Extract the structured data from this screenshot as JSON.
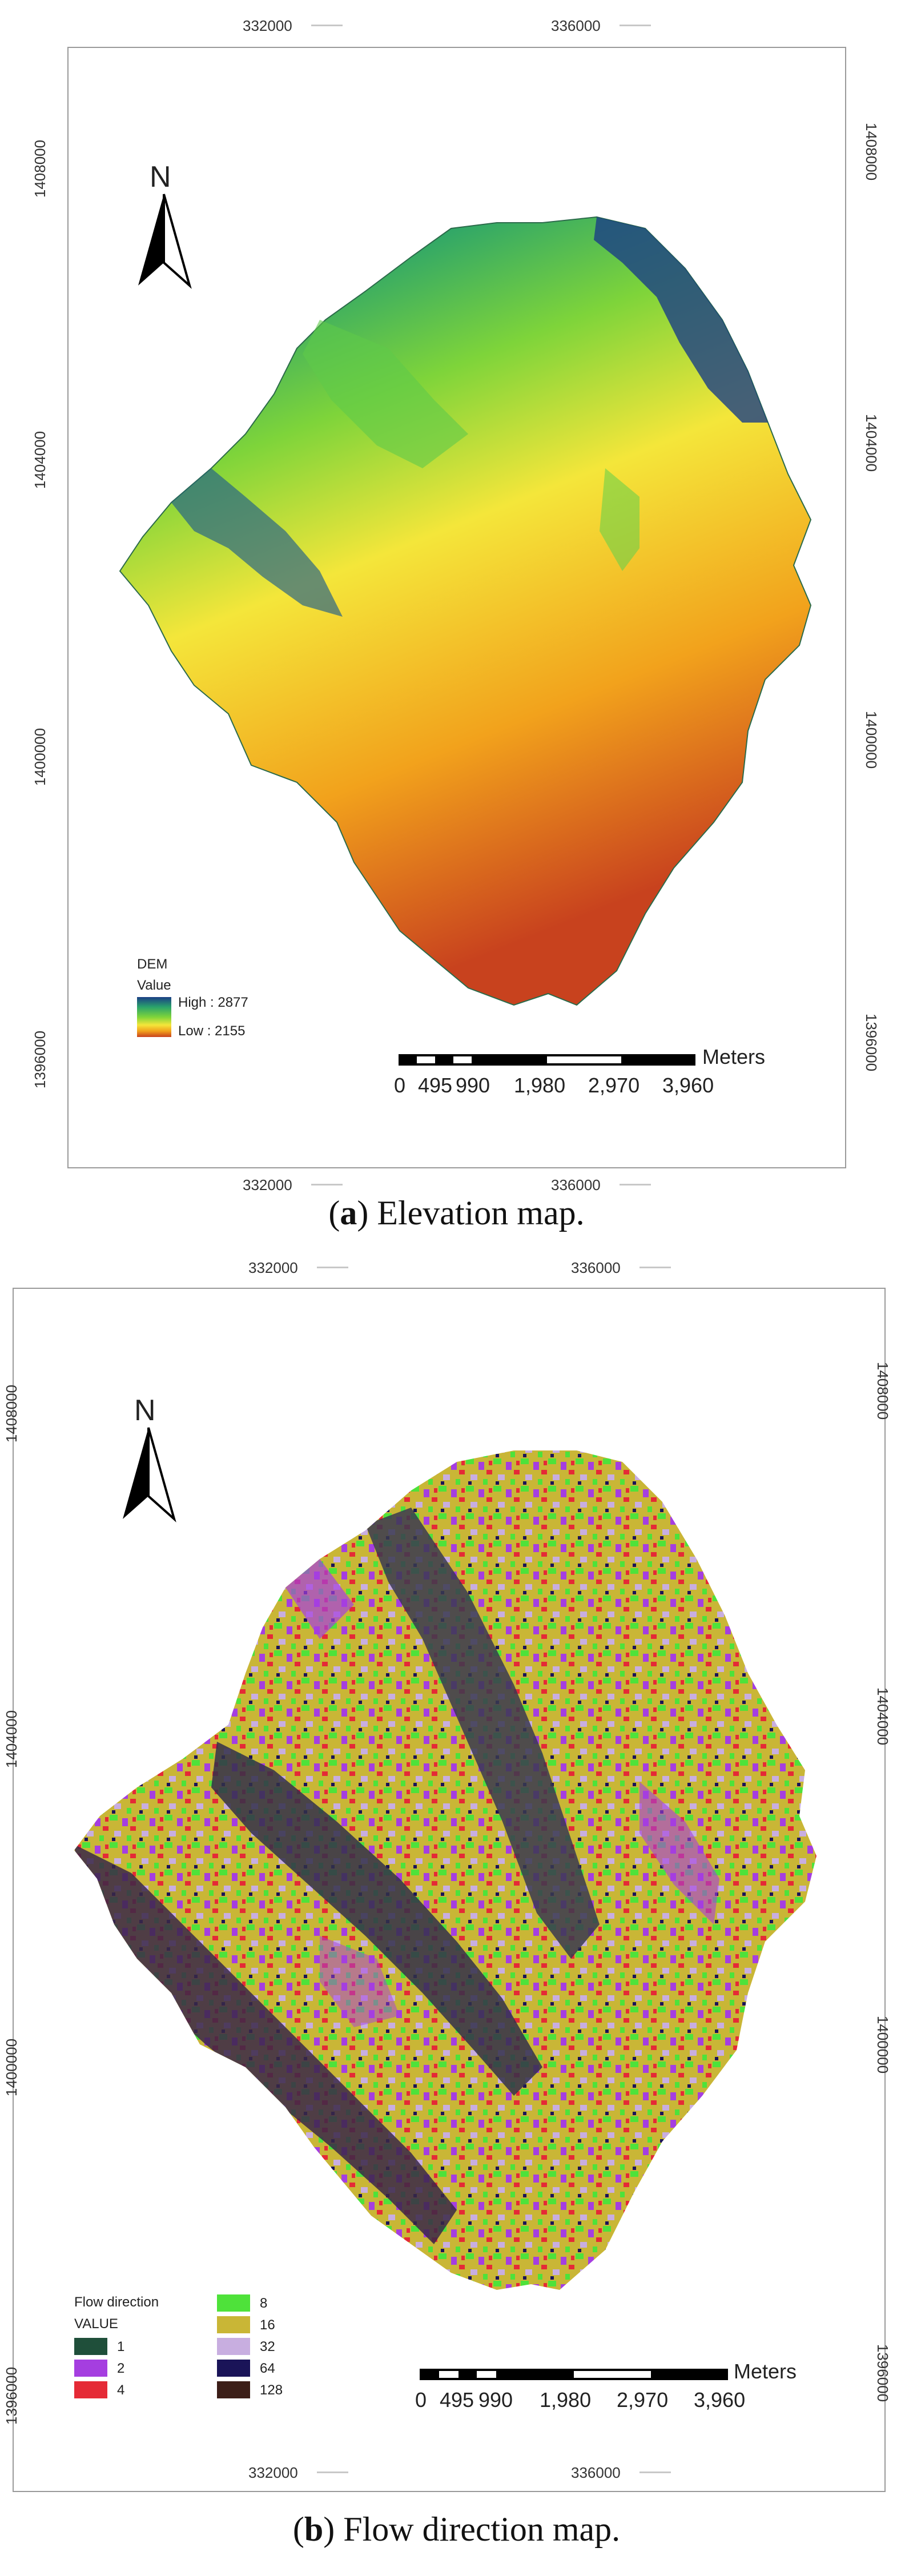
{
  "panel_a": {
    "caption_letter": "a",
    "caption_text": "Elevation map.",
    "x_ticks": [
      "332000",
      "336000"
    ],
    "y_ticks": [
      "1408000",
      "1404000",
      "1400000",
      "1396000"
    ],
    "north_label": "N",
    "legend": {
      "title": "DEM",
      "subtitle": "Value",
      "high_label": "High : 2877",
      "low_label": "Low : 2155",
      "gradient_colors": [
        "#1a3e86",
        "#2aa36b",
        "#7ed43a",
        "#f4e63a",
        "#f2a21c",
        "#c8421e"
      ]
    },
    "scale": {
      "labels": [
        "0",
        "495",
        "990",
        "1,980",
        "2,970",
        "3,960"
      ],
      "unit": "Meters"
    }
  },
  "panel_b": {
    "caption_letter": "b",
    "caption_text": "Flow direction map.",
    "x_ticks": [
      "332000",
      "336000"
    ],
    "y_ticks": [
      "1408000",
      "1404000",
      "1400000",
      "1396000"
    ],
    "north_label": "N",
    "legend": {
      "title": "Flow direction",
      "subtitle": "VALUE",
      "items": [
        {
          "label": "1",
          "color": "#1f4f3a"
        },
        {
          "label": "2",
          "color": "#a53ee0"
        },
        {
          "label": "4",
          "color": "#e52a36"
        },
        {
          "label": "8",
          "color": "#4ee23a"
        },
        {
          "label": "16",
          "color": "#c9b636"
        },
        {
          "label": "32",
          "color": "#c8aee0"
        },
        {
          "label": "64",
          "color": "#1a1458"
        },
        {
          "label": "128",
          "color": "#3c1e18"
        }
      ]
    },
    "scale": {
      "labels": [
        "0",
        "495",
        "990",
        "1,980",
        "2,970",
        "3,960"
      ],
      "unit": "Meters"
    }
  }
}
